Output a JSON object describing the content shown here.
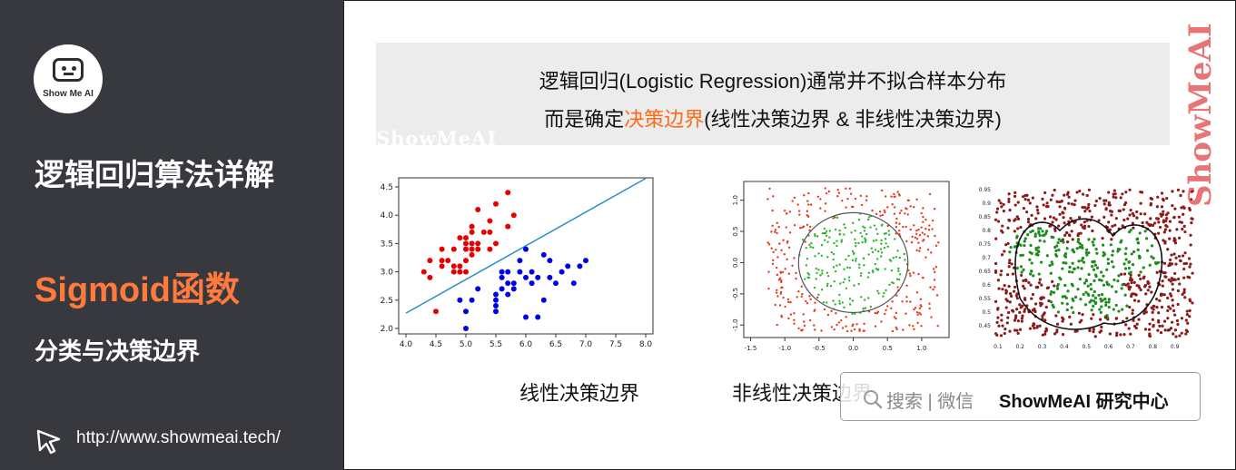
{
  "sidebar": {
    "logo_text": "Show Me AI",
    "title_main": "逻辑回归算法详解",
    "title_sigmoid": "Sigmoid函数",
    "title_sub": "分类与决策边界",
    "url": "http://www.showmeai.tech/",
    "accent_color": "#ff7a3c",
    "background_color": "#37393f"
  },
  "banner": {
    "line1": "逻辑回归(Logistic Regression)通常并不拟合样本分布",
    "line2_prefix": "而是确定",
    "line2_highlight": "决策边界",
    "line2_suffix": "(线性决策边界 & 非线性决策边界)",
    "highlight_color": "#ff6a1a",
    "watermark": "ShowMeAI"
  },
  "side_watermark": "ShowMeAI",
  "captions": {
    "linear": "线性决策边界",
    "nonlinear": "非线性决策边界"
  },
  "search_badge": {
    "icon": "search-icon",
    "label": "搜索 | 微信",
    "brand": "ShowMeAI 研究中心"
  },
  "chart_data": [
    {
      "type": "scatter",
      "title": "",
      "xlabel": "",
      "ylabel": "",
      "xlim": [
        4.0,
        8.0
      ],
      "ylim": [
        2.0,
        4.5
      ],
      "xticks": [
        "4.0",
        "4.5",
        "5.0",
        "5.5",
        "6.0",
        "6.5",
        "7.0",
        "7.5",
        "8.0"
      ],
      "yticks": [
        "2.0",
        "2.5",
        "3.0",
        "3.5",
        "4.0",
        "4.5"
      ],
      "series": [
        {
          "color": "#e60000",
          "points": [
            [
              4.3,
              3.0
            ],
            [
              4.4,
              2.9
            ],
            [
              4.4,
              3.2
            ],
            [
              4.5,
              2.3
            ],
            [
              4.6,
              3.1
            ],
            [
              4.6,
              3.4
            ],
            [
              4.6,
              3.2
            ],
            [
              4.7,
              3.2
            ],
            [
              4.8,
              3.4
            ],
            [
              4.8,
              3.0
            ],
            [
              4.8,
              3.1
            ],
            [
              4.9,
              3.0
            ],
            [
              4.9,
              3.1
            ],
            [
              4.9,
              3.6
            ],
            [
              5.0,
              3.6
            ],
            [
              5.0,
              3.4
            ],
            [
              5.0,
              3.0
            ],
            [
              5.0,
              3.5
            ],
            [
              5.0,
              3.2
            ],
            [
              5.1,
              3.5
            ],
            [
              5.1,
              3.8
            ],
            [
              5.1,
              3.3
            ],
            [
              5.1,
              3.4
            ],
            [
              5.1,
              3.7
            ],
            [
              5.2,
              3.5
            ],
            [
              5.2,
              3.4
            ],
            [
              5.2,
              4.1
            ],
            [
              5.3,
              3.7
            ],
            [
              5.4,
              3.9
            ],
            [
              5.4,
              3.4
            ],
            [
              5.4,
              3.7
            ],
            [
              5.5,
              4.2
            ],
            [
              5.5,
              3.5
            ],
            [
              5.7,
              4.4
            ],
            [
              5.7,
              3.8
            ],
            [
              5.8,
              4.0
            ]
          ]
        },
        {
          "color": "#0000e6",
          "points": [
            [
              4.9,
              2.5
            ],
            [
              5.0,
              2.0
            ],
            [
              5.0,
              2.3
            ],
            [
              5.1,
              2.5
            ],
            [
              5.2,
              2.7
            ],
            [
              5.5,
              2.3
            ],
            [
              5.5,
              2.4
            ],
            [
              5.5,
              2.6
            ],
            [
              5.5,
              2.5
            ],
            [
              5.6,
              2.9
            ],
            [
              5.6,
              3.0
            ],
            [
              5.6,
              2.7
            ],
            [
              5.7,
              2.8
            ],
            [
              5.7,
              2.6
            ],
            [
              5.7,
              3.0
            ],
            [
              5.8,
              2.7
            ],
            [
              5.8,
              2.8
            ],
            [
              5.9,
              3.0
            ],
            [
              5.9,
              3.2
            ],
            [
              6.0,
              2.2
            ],
            [
              6.0,
              2.9
            ],
            [
              6.0,
              3.4
            ],
            [
              6.1,
              2.8
            ],
            [
              6.1,
              3.0
            ],
            [
              6.2,
              2.2
            ],
            [
              6.2,
              2.9
            ],
            [
              6.3,
              2.5
            ],
            [
              6.3,
              3.3
            ],
            [
              6.4,
              2.9
            ],
            [
              6.4,
              3.2
            ],
            [
              6.5,
              2.8
            ],
            [
              6.6,
              3.0
            ],
            [
              6.7,
              3.1
            ],
            [
              6.8,
              2.8
            ],
            [
              6.9,
              3.1
            ],
            [
              7.0,
              3.2
            ]
          ]
        }
      ],
      "boundary": {
        "color": "#2a8fc6",
        "points": [
          [
            4.0,
            2.27
          ],
          [
            8.0,
            4.65
          ]
        ]
      }
    },
    {
      "type": "scatter",
      "title": "",
      "xlim": [
        -1.6,
        1.4
      ],
      "ylim": [
        -1.2,
        1.3
      ],
      "xticks": [
        "-1.5",
        "-1.0",
        "-0.5",
        "0.0",
        "0.5",
        "1.0"
      ],
      "yticks": [
        "-1.0",
        "-0.5",
        "0.0",
        "0.5",
        "1.0"
      ],
      "series": [
        {
          "name": "",
          "color": "#e63b1e",
          "region": "outside circle"
        },
        {
          "name": "",
          "color": "#2cb52c",
          "region": "inside circle"
        }
      ],
      "boundary": {
        "shape": "circle",
        "cx": 0.0,
        "cy": 0.0,
        "r": 0.8,
        "color": "#555555"
      }
    },
    {
      "type": "scatter",
      "title": "",
      "xlim": [
        0.08,
        1.0
      ],
      "ylim": [
        0.4,
        0.96
      ],
      "xticks": [
        "0.1",
        "0.2",
        "0.3",
        "0.4",
        "0.5",
        "0.6",
        "0.7",
        "0.8",
        "0.9"
      ],
      "yticks": [
        "0.45",
        "0.5",
        "0.55",
        "0.6",
        "0.65",
        "0.7",
        "0.75",
        "0.8",
        "0.85",
        "0.9",
        "0.95"
      ],
      "series": [
        {
          "name": "",
          "color": "#8b1a1a"
        },
        {
          "name": "",
          "color": "#1e8c1e"
        }
      ],
      "boundary": {
        "shape": "curve",
        "color": "#111111"
      }
    }
  ]
}
